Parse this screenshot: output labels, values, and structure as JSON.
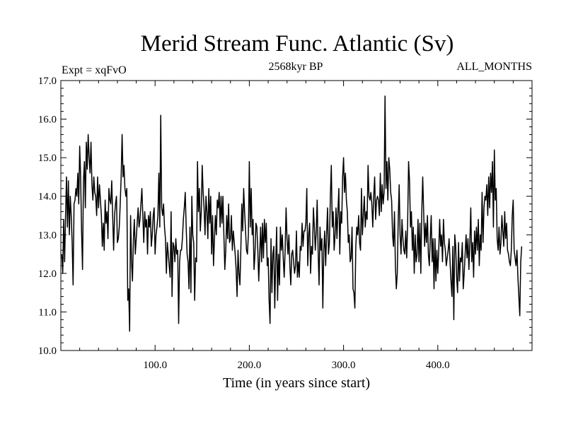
{
  "chart_data": {
    "type": "line",
    "title": "Merid Stream Func. Atlantic (Sv)",
    "subtitle_left": "Expt = xqFvO",
    "subtitle_center": "2568kyr BP",
    "subtitle_right": "ALL_MONTHS",
    "xlabel": "Time (in years since start)",
    "ylabel": "",
    "xlim": [
      0,
      500
    ],
    "ylim": [
      10.0,
      17.0
    ],
    "xticks": [
      100,
      200,
      300,
      400
    ],
    "xtick_labels": [
      "100.0",
      "200.0",
      "300.0",
      "400.0"
    ],
    "yticks": [
      10,
      11,
      12,
      13,
      14,
      15,
      16,
      17
    ],
    "ytick_labels": [
      "10.0",
      "11.0",
      "12.0",
      "13.0",
      "14.0",
      "15.0",
      "16.0",
      "17.0"
    ],
    "series": [
      {
        "name": "Merid Stream Func. Atlantic",
        "color": "#000000",
        "x_start": 1,
        "x_step": 1,
        "values": [
          12.5,
          12.0,
          13.4,
          12.3,
          13.5,
          14.5,
          13.2,
          14.4,
          13.0,
          14.0,
          13.5,
          12.8,
          11.7,
          13.8,
          13.9,
          14.2,
          14.0,
          14.6,
          13.8,
          15.3,
          14.5,
          13.1,
          12.1,
          14.4,
          14.9,
          13.7,
          15.4,
          14.7,
          15.6,
          15.0,
          14.6,
          15.4,
          14.3,
          13.9,
          14.5,
          14.1,
          14.0,
          13.5,
          14.5,
          13.7,
          14.3,
          13.9,
          13.5,
          12.7,
          13.3,
          12.6,
          13.9,
          13.3,
          13.6,
          12.9,
          14.2,
          13.9,
          13.8,
          14.4,
          13.5,
          12.6,
          13.5,
          13.8,
          14.0,
          12.8,
          12.9,
          13.2,
          13.8,
          14.5,
          15.6,
          14.5,
          14.8,
          14.2,
          14.0,
          14.2,
          11.3,
          11.6,
          10.5,
          13.5,
          12.3,
          11.8,
          12.9,
          13.4,
          12.5,
          12.9,
          13.3,
          13.7,
          13.2,
          13.4,
          13.8,
          14.2,
          13.5,
          12.8,
          13.6,
          13.2,
          13.4,
          12.5,
          13.5,
          13.2,
          13.6,
          12.7,
          13.0,
          13.5,
          13.7,
          12.5,
          13.0,
          13.2,
          13.5,
          14.6,
          13.2,
          16.1,
          13.7,
          13.5,
          13.8,
          13.2,
          12.9,
          12.0,
          12.8,
          12.5,
          12.2,
          11.9,
          13.6,
          11.4,
          12.8,
          12.7,
          12.3,
          12.9,
          12.5,
          12.6,
          10.7,
          12.3,
          12.6,
          12.6,
          12.9,
          13.4,
          13.7,
          14.1,
          13.2,
          12.5,
          12.3,
          11.6,
          13.2,
          11.5,
          14.0,
          13.0,
          12.8,
          11.3,
          12.4,
          12.3,
          14.9,
          13.6,
          14.2,
          13.1,
          13.6,
          14.8,
          14.1,
          13.7,
          13.0,
          14.0,
          13.6,
          12.9,
          14.2,
          13.3,
          14.0,
          12.5,
          13.5,
          12.2,
          12.9,
          13.5,
          13.0,
          13.9,
          13.7,
          14.1,
          13.2,
          14.0,
          13.3,
          14.0,
          13.0,
          12.1,
          12.6,
          13.5,
          12.9,
          13.8,
          12.8,
          12.9,
          13.5,
          12.6,
          13.1,
          12.8,
          12.5,
          12.1,
          11.4,
          12.6,
          12.0,
          11.7,
          12.6,
          13.8,
          13.1,
          14.2,
          13.6,
          13.1,
          12.6,
          12.5,
          13.0,
          14.9,
          13.2,
          14.2,
          13.0,
          13.4,
          12.1,
          12.5,
          13.3,
          13.2,
          12.6,
          11.8,
          12.5,
          13.2,
          12.3,
          13.3,
          12.4,
          13.4,
          12.8,
          13.3,
          12.2,
          12.4,
          11.3,
          10.7,
          12.9,
          11.5,
          12.5,
          12.7,
          11.1,
          12.3,
          13.2,
          11.3,
          12.5,
          11.7,
          13.2,
          12.6,
          13.0,
          12.4,
          11.9,
          12.6,
          13.7,
          12.9,
          12.5,
          13.0,
          12.2,
          11.7,
          12.5,
          12.6,
          12.3,
          12.0,
          12.2,
          13.1,
          11.9,
          12.3,
          11.9,
          12.7,
          12.6,
          13.3,
          12.7,
          13.1,
          13.1,
          13.3,
          14.2,
          12.2,
          13.0,
          13.3,
          12.0,
          12.7,
          12.5,
          13.7,
          13.2,
          12.6,
          13.1,
          13.9,
          12.6,
          11.7,
          13.2,
          12.6,
          12.9,
          11.1,
          12.6,
          13.1,
          12.2,
          13.0,
          13.7,
          12.5,
          12.8,
          14.0,
          14.8,
          13.2,
          13.6,
          12.6,
          13.0,
          13.7,
          12.9,
          13.6,
          14.2,
          12.5,
          13.6,
          13.3,
          14.5,
          15.0,
          14.1,
          14.6,
          13.9,
          13.6,
          12.8,
          13.0,
          12.3,
          12.4,
          13.2,
          11.6,
          11.5,
          11.1,
          12.7,
          13.2,
          13.0,
          13.5,
          12.8,
          12.6,
          14.2,
          13.0,
          13.5,
          14.0,
          13.2,
          13.6,
          13.4,
          14.8,
          14.0,
          13.9,
          14.1,
          13.8,
          13.2,
          14.0,
          14.5,
          13.4,
          13.9,
          14.0,
          13.9,
          13.5,
          14.6,
          13.6,
          14.3,
          13.8,
          14.1,
          16.6,
          14.2,
          14.9,
          13.9,
          15.0,
          14.7,
          14.1,
          13.9,
          13.0,
          12.7,
          13.6,
          12.2,
          11.6,
          12.0,
          13.4,
          14.3,
          13.0,
          12.5,
          13.4,
          12.9,
          12.6,
          12.5,
          13.1,
          12.4,
          13.3,
          14.9,
          14.4,
          13.2,
          13.6,
          12.6,
          13.2,
          12.0,
          13.0,
          12.3,
          12.5,
          13.4,
          12.3,
          13.3,
          12.0,
          13.6,
          14.5,
          13.6,
          12.7,
          13.3,
          12.8,
          13.5,
          12.5,
          12.2,
          12.9,
          13.5,
          12.3,
          12.9,
          11.6,
          12.9,
          11.8,
          12.6,
          12.0,
          12.6,
          13.4,
          12.7,
          13.0,
          12.3,
          13.4,
          12.8,
          12.6,
          12.2,
          12.4,
          12.6,
          12.9,
          12.3,
          11.8,
          11.4,
          12.7,
          10.8,
          13.0,
          12.7,
          11.9,
          11.5,
          12.8,
          11.8,
          12.4,
          12.3,
          12.8,
          11.6,
          12.0,
          12.5,
          13.0,
          12.4,
          12.9,
          12.1,
          12.8,
          13.7,
          12.3,
          12.8,
          11.9,
          13.1,
          12.5,
          13.2,
          12.6,
          13.4,
          12.2,
          13.0,
          12.6,
          14.1,
          12.8,
          13.7,
          14.0,
          13.9,
          14.3,
          13.5,
          14.5,
          13.7,
          14.6,
          14.1,
          14.9,
          13.2,
          15.2,
          13.9,
          14.2,
          12.9,
          12.6,
          13.2,
          12.5,
          12.8,
          13.5,
          13.1,
          12.7,
          13.6,
          12.9,
          13.3,
          12.6,
          12.5,
          12.3,
          12.2,
          12.6,
          13.5,
          13.9,
          12.6,
          12.4,
          12.2,
          12.6,
          11.9,
          11.4,
          10.9,
          12.3,
          12.7
        ]
      }
    ]
  }
}
